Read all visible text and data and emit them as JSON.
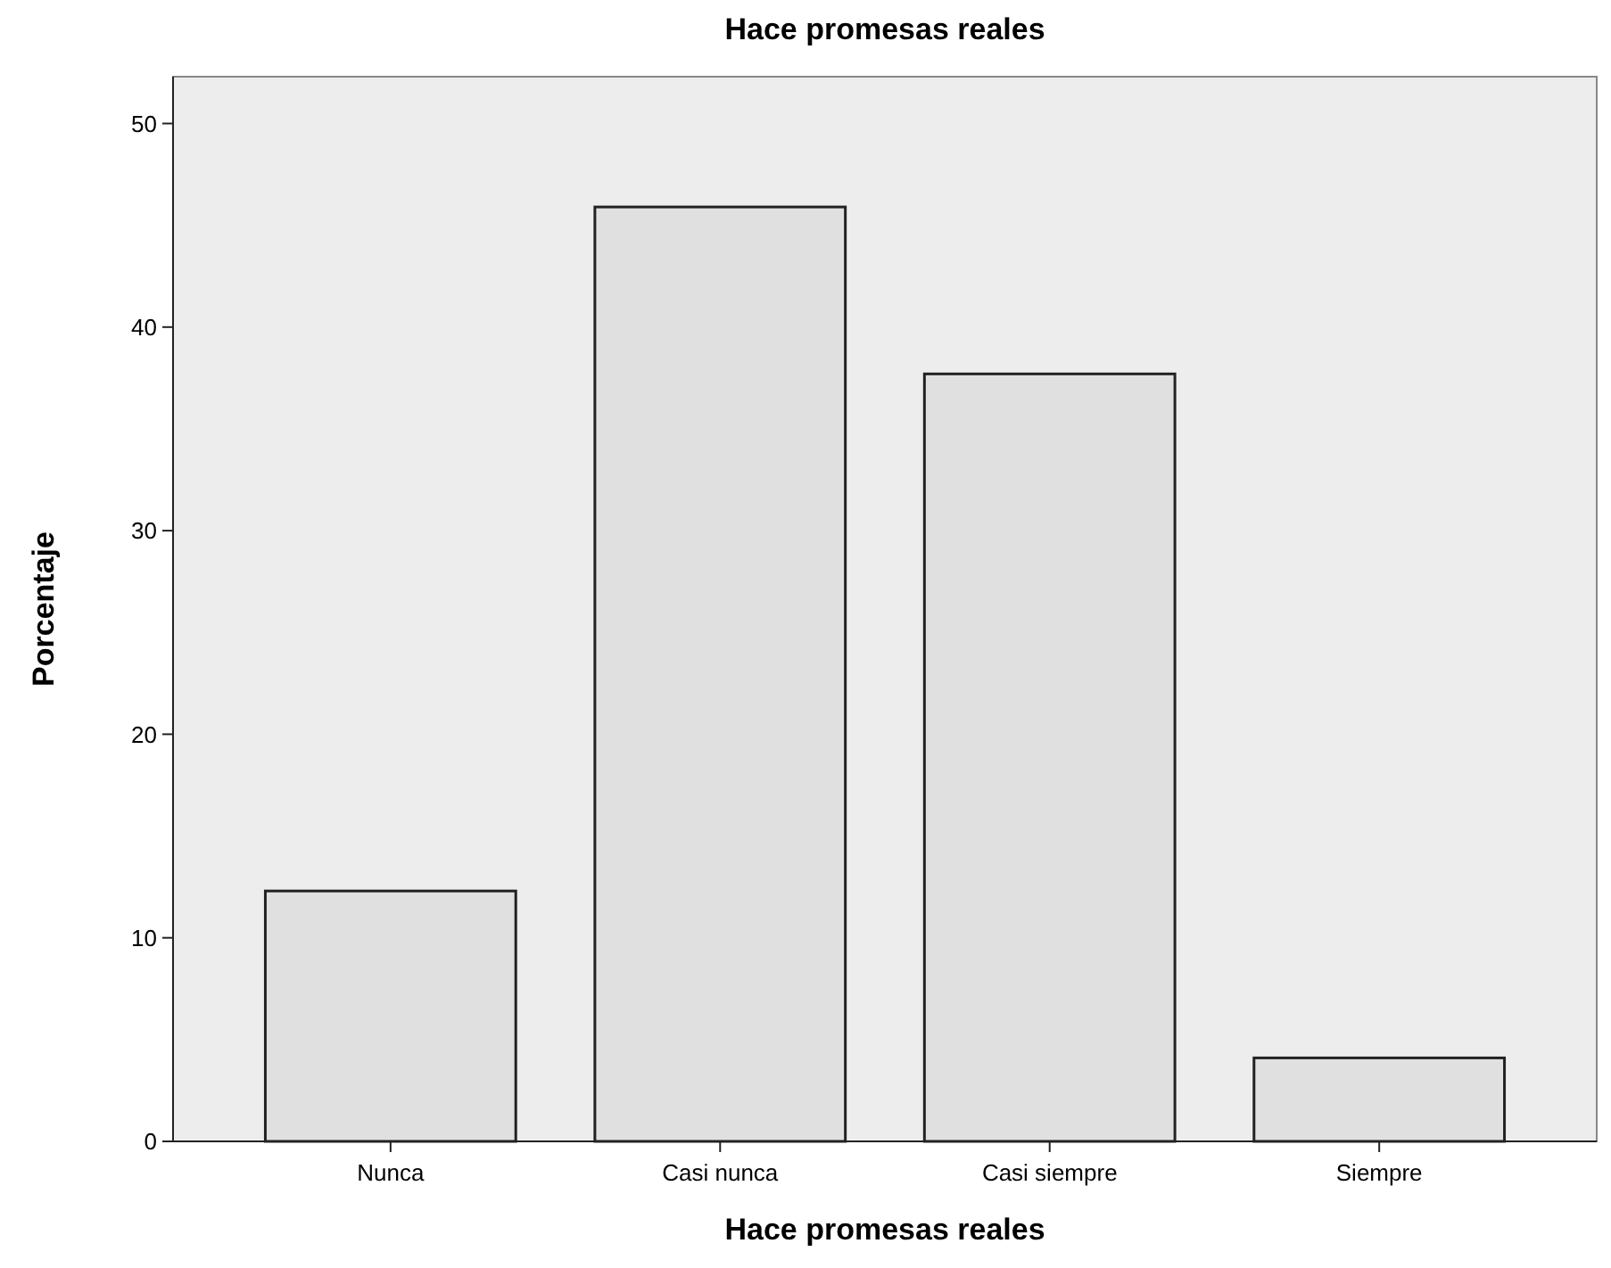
{
  "chart_data": {
    "type": "bar",
    "title": "Hace promesas reales",
    "xlabel": "Hace promesas reales",
    "ylabel": "Porcentaje",
    "categories": [
      "Nunca",
      "Casi nunca",
      "Casi siempre",
      "Siempre"
    ],
    "values": [
      12.3,
      45.9,
      37.7,
      4.1
    ],
    "color": "#e0e0e0",
    "ylim": [
      0,
      52.3
    ],
    "yticks": [
      0,
      10,
      20,
      30,
      40,
      50
    ],
    "grid": false
  }
}
